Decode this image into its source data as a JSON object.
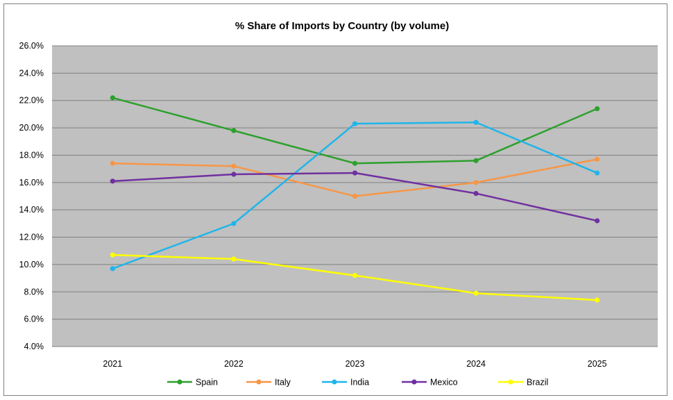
{
  "chart_data": {
    "type": "line",
    "title": "% Share of Imports by Country (by volume)",
    "xlabel": "",
    "ylabel": "",
    "categories": [
      "2021",
      "2022",
      "2023",
      "2024",
      "2025"
    ],
    "ylim": [
      4.0,
      26.0
    ],
    "ytick_step": 2.0,
    "ytick_format": "percent_1dp",
    "grid": true,
    "legend_position": "bottom",
    "plot_background": "#c0c0c0",
    "series": [
      {
        "name": "Spain",
        "color": "#2ca02c",
        "values": [
          22.2,
          19.8,
          17.4,
          17.6,
          21.4
        ]
      },
      {
        "name": "Italy",
        "color": "#f79646",
        "values": [
          17.4,
          17.2,
          15.0,
          16.0,
          17.7
        ]
      },
      {
        "name": "India",
        "color": "#1fb5ea",
        "values": [
          9.7,
          13.0,
          20.3,
          20.4,
          16.7
        ]
      },
      {
        "name": "Mexico",
        "color": "#7030a0",
        "values": [
          16.1,
          16.6,
          16.7,
          15.2,
          13.2
        ]
      },
      {
        "name": "Brazil",
        "color": "#ffff00",
        "values": [
          10.7,
          10.4,
          9.2,
          7.9,
          7.4
        ]
      }
    ]
  }
}
